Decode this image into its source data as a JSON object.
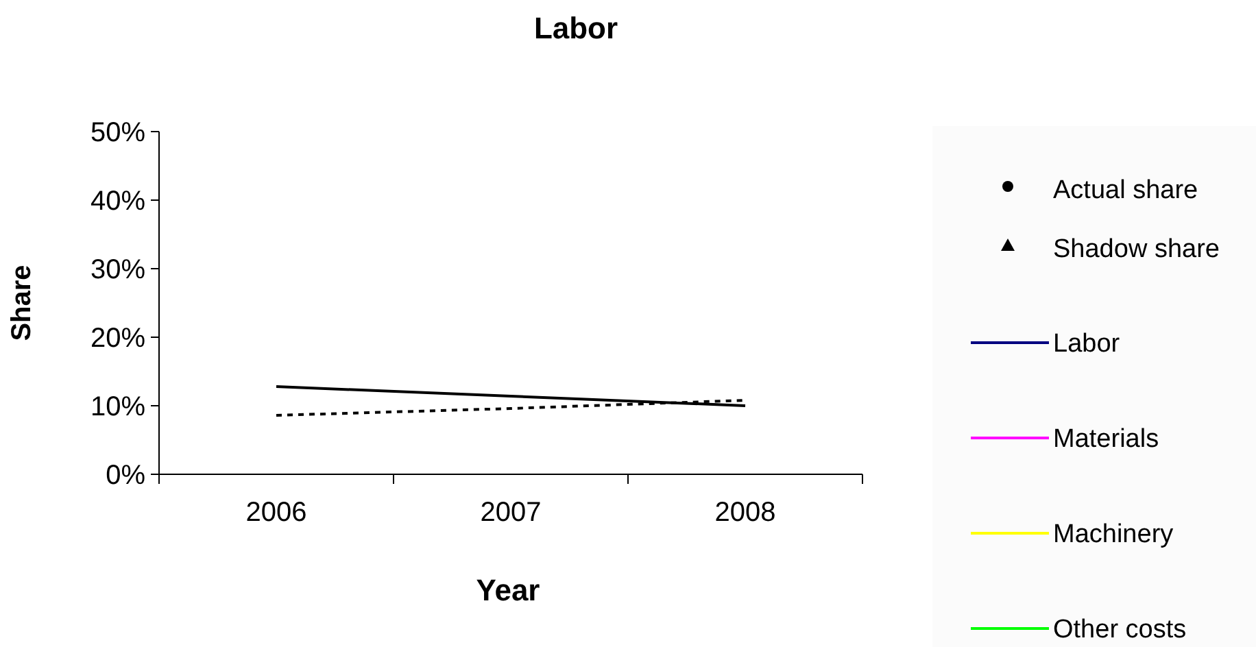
{
  "chart_data": {
    "type": "line",
    "title": "Labor",
    "xlabel": "Year",
    "ylabel": "Share",
    "categories": [
      "2006",
      "2007",
      "2008"
    ],
    "ylim": [
      0,
      0.5
    ],
    "yticks": [
      {
        "value": 0,
        "label": "0%"
      },
      {
        "value": 0.1,
        "label": "10%"
      },
      {
        "value": 0.2,
        "label": "20%"
      },
      {
        "value": 0.3,
        "label": "30%"
      },
      {
        "value": 0.4,
        "label": "40%"
      },
      {
        "value": 0.5,
        "label": "50%"
      }
    ],
    "grid": false,
    "legend": "right",
    "series": [
      {
        "name": "Actual share",
        "color": "#000000",
        "values": [
          0.128,
          0.114,
          0.1
        ],
        "line_style": "solid"
      },
      {
        "name": "Shadow share",
        "color": "#000000",
        "values": [
          0.086,
          0.096,
          0.108
        ],
        "line_style": "dotted"
      },
      {
        "name": "Labor",
        "color": "#000080",
        "values": [
          null,
          null,
          null
        ],
        "line_style": "solid",
        "marker": "none"
      },
      {
        "name": "Materials",
        "color": "#ff00ff",
        "values": [
          null,
          null,
          null
        ],
        "line_style": "solid",
        "marker": "none"
      },
      {
        "name": "Machinery",
        "color": "#ffff00",
        "values": [
          null,
          null,
          null
        ],
        "line_style": "solid",
        "marker": "none"
      },
      {
        "name": "Other costs",
        "color": "#00ff00",
        "values": [
          null,
          null,
          null
        ],
        "line_style": "solid",
        "marker": "none"
      }
    ]
  }
}
